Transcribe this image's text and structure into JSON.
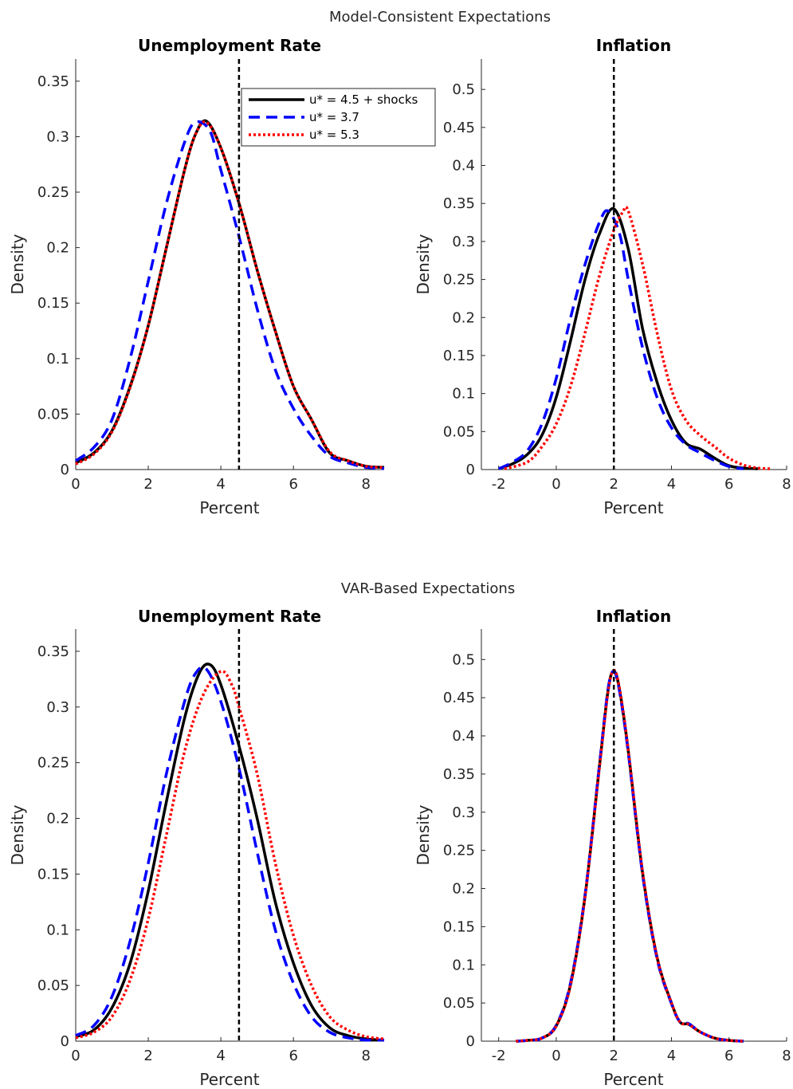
{
  "figure": {
    "top_title": "Model-Consistent Expectations",
    "bottom_title": "VAR-Based Expectations"
  },
  "legend": {
    "entries": [
      {
        "label": "u* = 4.5 + shocks",
        "color": "#000000",
        "style": "solid"
      },
      {
        "label": "u* = 3.7",
        "color": "#0000ff",
        "style": "dashed"
      },
      {
        "label": "u* = 5.3",
        "color": "#ff0000",
        "style": "dotted"
      }
    ]
  },
  "chart_data": [
    {
      "type": "line",
      "title": "Unemployment Rate",
      "xlabel": "Percent",
      "ylabel": "Density",
      "xlim": [
        0,
        8.5
      ],
      "ylim": [
        0,
        0.37
      ],
      "xticks": [
        0,
        2,
        4,
        6,
        8
      ],
      "yticks": [
        0,
        0.05,
        0.1,
        0.15,
        0.2,
        0.25,
        0.3,
        0.35
      ],
      "vline": 4.5,
      "legend": "top-right",
      "series": [
        {
          "name": "u* = 4.5 + shocks",
          "color": "#000000",
          "style": "solid",
          "x": [
            0,
            0.5,
            1,
            1.5,
            2,
            2.5,
            3,
            3.3,
            3.6,
            4,
            4.5,
            5,
            5.5,
            6,
            6.5,
            7,
            7.5,
            8,
            8.5
          ],
          "y": [
            0.006,
            0.015,
            0.035,
            0.075,
            0.13,
            0.2,
            0.27,
            0.302,
            0.314,
            0.29,
            0.24,
            0.18,
            0.125,
            0.075,
            0.045,
            0.015,
            0.008,
            0.003,
            0.002
          ]
        },
        {
          "name": "u* = 3.7",
          "color": "#0000ff",
          "style": "dashed",
          "x": [
            0,
            0.5,
            1,
            1.5,
            2,
            2.5,
            3,
            3.3,
            3.7,
            4,
            4.5,
            5,
            5.5,
            6,
            6.5,
            7,
            7.5,
            8,
            8.5
          ],
          "y": [
            0.008,
            0.02,
            0.045,
            0.1,
            0.17,
            0.24,
            0.295,
            0.313,
            0.305,
            0.27,
            0.21,
            0.145,
            0.09,
            0.055,
            0.03,
            0.012,
            0.006,
            0.002,
            0.001
          ]
        },
        {
          "name": "u* = 5.3",
          "color": "#ff0000",
          "style": "dotted",
          "x": [
            0,
            0.5,
            1,
            1.5,
            2,
            2.5,
            3,
            3.3,
            3.6,
            4,
            4.5,
            5,
            5.5,
            6,
            6.5,
            7,
            7.5,
            8,
            8.5
          ],
          "y": [
            0.005,
            0.014,
            0.034,
            0.074,
            0.13,
            0.2,
            0.27,
            0.302,
            0.313,
            0.29,
            0.24,
            0.18,
            0.125,
            0.075,
            0.045,
            0.016,
            0.008,
            0.003,
            0.002
          ]
        }
      ]
    },
    {
      "type": "line",
      "title": "Inflation",
      "xlabel": "Percent",
      "ylabel": "Density",
      "xlim": [
        -2.6,
        8
      ],
      "ylim": [
        0,
        0.54
      ],
      "xticks": [
        -2,
        0,
        2,
        4,
        6,
        8
      ],
      "yticks": [
        0,
        0.05,
        0.1,
        0.15,
        0.2,
        0.25,
        0.3,
        0.35,
        0.4,
        0.45,
        0.5
      ],
      "vline": 2,
      "series": [
        {
          "name": "u* = 4.5 + shocks",
          "color": "#000000",
          "style": "solid",
          "x": [
            -2,
            -1.5,
            -1,
            -0.5,
            0,
            0.5,
            1,
            1.5,
            2,
            2.5,
            3,
            3.5,
            4,
            4.5,
            5,
            5.5,
            6,
            6.5,
            7
          ],
          "y": [
            0.001,
            0.008,
            0.02,
            0.045,
            0.095,
            0.17,
            0.25,
            0.31,
            0.343,
            0.29,
            0.185,
            0.115,
            0.065,
            0.035,
            0.027,
            0.015,
            0.005,
            0.002,
            0.001
          ]
        },
        {
          "name": "u* = 3.7",
          "color": "#0000ff",
          "style": "dashed",
          "x": [
            -2,
            -1.5,
            -1,
            -0.5,
            0,
            0.5,
            1,
            1.5,
            1.8,
            2.2,
            2.5,
            3,
            3.5,
            4,
            4.5,
            5,
            5.5,
            6,
            6.5
          ],
          "y": [
            0.001,
            0.01,
            0.025,
            0.06,
            0.12,
            0.2,
            0.27,
            0.325,
            0.34,
            0.31,
            0.25,
            0.16,
            0.095,
            0.055,
            0.033,
            0.022,
            0.012,
            0.004,
            0.001
          ]
        },
        {
          "name": "u* = 5.3",
          "color": "#ff0000",
          "style": "dotted",
          "x": [
            -1.8,
            -1,
            -0.5,
            0,
            0.5,
            1,
            1.5,
            2,
            2.3,
            2.5,
            3,
            3.5,
            4,
            4.5,
            5,
            5.5,
            6,
            6.5,
            7,
            7.5
          ],
          "y": [
            0.001,
            0.01,
            0.03,
            0.06,
            0.11,
            0.18,
            0.255,
            0.315,
            0.338,
            0.34,
            0.27,
            0.18,
            0.105,
            0.065,
            0.045,
            0.03,
            0.015,
            0.006,
            0.002,
            0.001
          ]
        }
      ]
    },
    {
      "type": "line",
      "title": "Unemployment Rate",
      "xlabel": "Percent",
      "ylabel": "Density",
      "xlim": [
        0,
        8.5
      ],
      "ylim": [
        0,
        0.37
      ],
      "xticks": [
        0,
        2,
        4,
        6,
        8
      ],
      "yticks": [
        0,
        0.05,
        0.1,
        0.15,
        0.2,
        0.25,
        0.3,
        0.35
      ],
      "vline": 4.5,
      "series": [
        {
          "name": "u* = 4.5 + shocks",
          "color": "#000000",
          "style": "solid",
          "x": [
            0,
            0.5,
            1,
            1.5,
            2,
            2.5,
            3,
            3.4,
            3.7,
            4,
            4.5,
            5,
            5.5,
            6,
            6.5,
            7,
            7.5,
            8,
            8.5
          ],
          "y": [
            0.004,
            0.01,
            0.03,
            0.07,
            0.135,
            0.215,
            0.29,
            0.33,
            0.338,
            0.32,
            0.265,
            0.2,
            0.125,
            0.07,
            0.032,
            0.012,
            0.005,
            0.002,
            0.001
          ]
        },
        {
          "name": "u* = 3.7",
          "color": "#0000ff",
          "style": "dashed",
          "x": [
            0,
            0.5,
            1,
            1.5,
            2,
            2.5,
            3,
            3.3,
            3.6,
            4,
            4.5,
            5,
            5.5,
            6,
            6.5,
            7,
            7.5,
            8,
            8.5
          ],
          "y": [
            0.005,
            0.014,
            0.04,
            0.09,
            0.16,
            0.24,
            0.305,
            0.33,
            0.334,
            0.305,
            0.245,
            0.17,
            0.1,
            0.052,
            0.022,
            0.008,
            0.003,
            0.001,
            0.001
          ]
        },
        {
          "name": "u* = 5.3",
          "color": "#ff0000",
          "style": "dotted",
          "x": [
            0,
            0.5,
            1,
            1.5,
            2,
            2.5,
            3,
            3.5,
            4,
            4.3,
            4.5,
            5,
            5.5,
            6,
            6.5,
            7,
            7.5,
            8,
            8.5
          ],
          "y": [
            0.003,
            0.008,
            0.022,
            0.055,
            0.11,
            0.185,
            0.26,
            0.31,
            0.332,
            0.32,
            0.3,
            0.24,
            0.16,
            0.095,
            0.05,
            0.022,
            0.01,
            0.004,
            0.002
          ]
        }
      ]
    },
    {
      "type": "line",
      "title": "Inflation",
      "xlabel": "Percent",
      "ylabel": "Density",
      "xlim": [
        -2.6,
        8
      ],
      "ylim": [
        0,
        0.54
      ],
      "xticks": [
        -2,
        0,
        2,
        4,
        6,
        8
      ],
      "yticks": [
        0,
        0.05,
        0.1,
        0.15,
        0.2,
        0.25,
        0.3,
        0.35,
        0.4,
        0.45,
        0.5
      ],
      "vline": 2,
      "series": [
        {
          "name": "u* = 4.5 + shocks",
          "color": "#000000",
          "style": "solid",
          "x": [
            -1.4,
            -1,
            -0.5,
            0,
            0.5,
            1,
            1.5,
            1.8,
            2,
            2.2,
            2.5,
            3,
            3.5,
            4,
            4.3,
            4.6,
            5,
            5.5,
            6,
            6.5
          ],
          "y": [
            0,
            0.001,
            0.004,
            0.02,
            0.075,
            0.19,
            0.36,
            0.46,
            0.485,
            0.46,
            0.38,
            0.22,
            0.11,
            0.05,
            0.025,
            0.022,
            0.012,
            0.004,
            0.001,
            0
          ]
        },
        {
          "name": "u* = 3.7",
          "color": "#0000ff",
          "style": "dashed",
          "x": [
            -1.4,
            -1,
            -0.5,
            0,
            0.5,
            1,
            1.5,
            1.8,
            2,
            2.2,
            2.5,
            3,
            3.5,
            4,
            4.3,
            4.6,
            5,
            5.5,
            6,
            6.5
          ],
          "y": [
            0,
            0.001,
            0.004,
            0.021,
            0.077,
            0.192,
            0.362,
            0.462,
            0.484,
            0.458,
            0.378,
            0.218,
            0.108,
            0.049,
            0.025,
            0.023,
            0.012,
            0.004,
            0.001,
            0
          ]
        },
        {
          "name": "u* = 5.3",
          "color": "#ff0000",
          "style": "dotted",
          "x": [
            -1.4,
            -1,
            -0.5,
            0,
            0.5,
            1,
            1.5,
            1.8,
            2,
            2.2,
            2.5,
            3,
            3.5,
            4,
            4.3,
            4.6,
            5,
            5.5,
            6,
            6.5
          ],
          "y": [
            0,
            0.001,
            0.004,
            0.02,
            0.074,
            0.19,
            0.358,
            0.458,
            0.486,
            0.462,
            0.382,
            0.222,
            0.11,
            0.05,
            0.025,
            0.022,
            0.012,
            0.004,
            0.001,
            0
          ]
        }
      ]
    }
  ]
}
